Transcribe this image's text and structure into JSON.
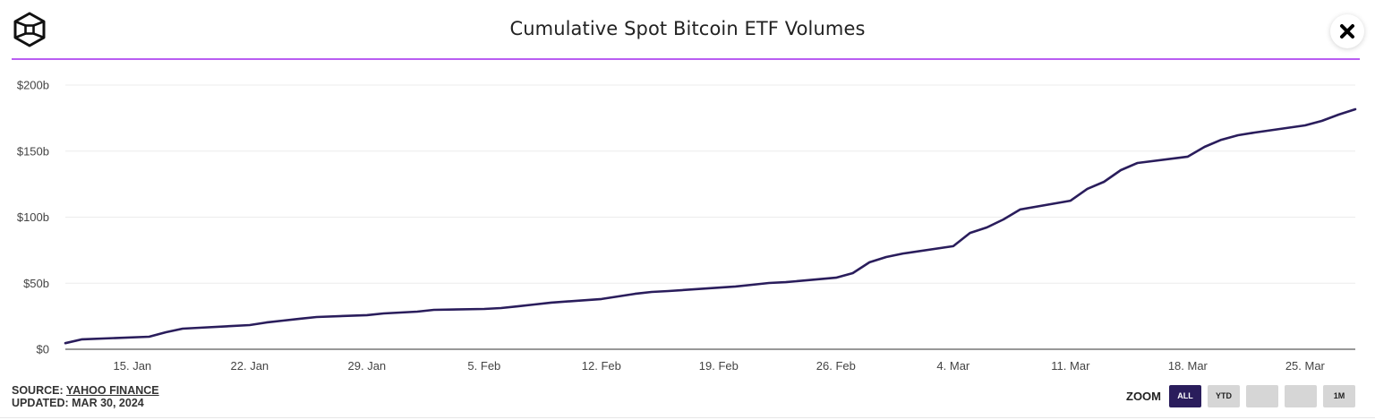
{
  "header": {
    "title": "Cumulative Spot Bitcoin ETF Volumes",
    "logo_icon": "hexagon-cube-logo-icon",
    "close_icon": "close-icon"
  },
  "colors": {
    "accent_rule": "#b95ef2",
    "series_line": "#2a1d5c",
    "zoom_active": "#2a1d5c",
    "zoom_inactive": "#d6d6d6"
  },
  "footer": {
    "source_label": "SOURCE:",
    "source_link": "YAHOO FINANCE",
    "updated": "UPDATED: MAR 30, 2024"
  },
  "zoom": {
    "label": "ZOOM",
    "buttons": [
      {
        "label": "ALL",
        "active": true
      },
      {
        "label": "YTD",
        "active": false
      },
      {
        "label": "",
        "active": false
      },
      {
        "label": "",
        "active": false
      },
      {
        "label": "1M",
        "active": false
      }
    ]
  },
  "chart_data": {
    "type": "line",
    "title": "Cumulative Spot Bitcoin ETF Volumes",
    "xlabel": "",
    "ylabel": "",
    "units": "USD billions",
    "ylim": [
      0,
      200
    ],
    "xlim": [
      "2024-01-11",
      "2024-03-28"
    ],
    "grid": true,
    "legend": "none",
    "y_ticks": [
      {
        "value": 0,
        "label": "$0"
      },
      {
        "value": 50,
        "label": "$50b"
      },
      {
        "value": 100,
        "label": "$100b"
      },
      {
        "value": 150,
        "label": "$150b"
      },
      {
        "value": 200,
        "label": "$200b"
      }
    ],
    "x_ticks": [
      {
        "date": "2024-01-15",
        "label": "15. Jan"
      },
      {
        "date": "2024-01-22",
        "label": "22. Jan"
      },
      {
        "date": "2024-01-29",
        "label": "29. Jan"
      },
      {
        "date": "2024-02-05",
        "label": "5. Feb"
      },
      {
        "date": "2024-02-12",
        "label": "12. Feb"
      },
      {
        "date": "2024-02-19",
        "label": "19. Feb"
      },
      {
        "date": "2024-02-26",
        "label": "26. Feb"
      },
      {
        "date": "2024-03-04",
        "label": "4. Mar"
      },
      {
        "date": "2024-03-11",
        "label": "11. Mar"
      },
      {
        "date": "2024-03-18",
        "label": "18. Mar"
      },
      {
        "date": "2024-03-25",
        "label": "25. Mar"
      }
    ],
    "series": [
      {
        "name": "Cumulative Spot Bitcoin ETF Volume",
        "x": [
          "2024-01-11",
          "2024-01-12",
          "2024-01-16",
          "2024-01-17",
          "2024-01-18",
          "2024-01-19",
          "2024-01-22",
          "2024-01-23",
          "2024-01-24",
          "2024-01-25",
          "2024-01-26",
          "2024-01-29",
          "2024-01-30",
          "2024-01-31",
          "2024-02-01",
          "2024-02-02",
          "2024-02-05",
          "2024-02-06",
          "2024-02-07",
          "2024-02-08",
          "2024-02-09",
          "2024-02-12",
          "2024-02-13",
          "2024-02-14",
          "2024-02-15",
          "2024-02-16",
          "2024-02-20",
          "2024-02-21",
          "2024-02-22",
          "2024-02-23",
          "2024-02-26",
          "2024-02-27",
          "2024-02-28",
          "2024-02-29",
          "2024-03-01",
          "2024-03-04",
          "2024-03-05",
          "2024-03-06",
          "2024-03-07",
          "2024-03-08",
          "2024-03-11",
          "2024-03-12",
          "2024-03-13",
          "2024-03-14",
          "2024-03-15",
          "2024-03-18",
          "2024-03-19",
          "2024-03-20",
          "2024-03-21",
          "2024-03-22",
          "2024-03-25",
          "2024-03-26",
          "2024-03-27",
          "2024-03-28"
        ],
        "values": [
          4.6,
          7.5,
          9.5,
          12.9,
          15.6,
          16.3,
          18.3,
          20.3,
          21.7,
          23.1,
          24.4,
          25.8,
          27.1,
          27.8,
          28.5,
          29.8,
          30.5,
          31.2,
          32.5,
          33.9,
          35.3,
          38.0,
          40.0,
          42.0,
          43.4,
          44.1,
          47.5,
          48.8,
          50.2,
          50.8,
          54.2,
          57.6,
          65.8,
          69.8,
          72.5,
          78.0,
          88.1,
          92.2,
          98.3,
          105.8,
          112.5,
          121.4,
          126.8,
          135.6,
          141.0,
          145.8,
          153.2,
          158.6,
          162.0,
          164.1,
          169.5,
          172.9,
          177.6,
          181.7
        ]
      }
    ]
  }
}
